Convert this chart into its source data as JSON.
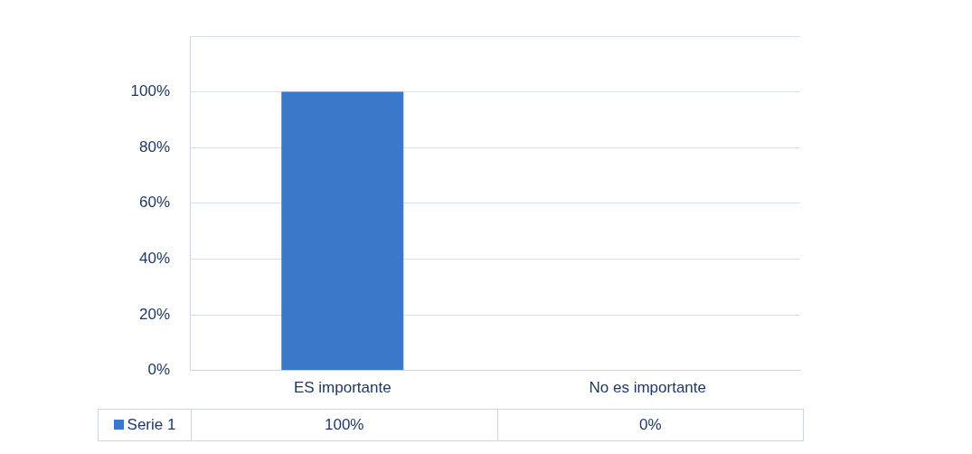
{
  "chart_data": {
    "type": "bar",
    "categories": [
      "ES importante",
      "No es importante"
    ],
    "series": [
      {
        "name": "Serie 1",
        "color": "#3a78c9",
        "values": [
          100,
          0
        ],
        "value_labels": [
          "100%",
          "0%"
        ]
      }
    ],
    "ylim": [
      0,
      120
    ],
    "yticks": [
      {
        "value": 0,
        "label": "0%"
      },
      {
        "value": 20,
        "label": "20%"
      },
      {
        "value": 40,
        "label": "40%"
      },
      {
        "value": 60,
        "label": "60%"
      },
      {
        "value": 80,
        "label": "80%"
      },
      {
        "value": 100,
        "label": "100%"
      },
      {
        "value": 120,
        "label": null
      }
    ],
    "grid": "y",
    "legend": "bottom"
  }
}
